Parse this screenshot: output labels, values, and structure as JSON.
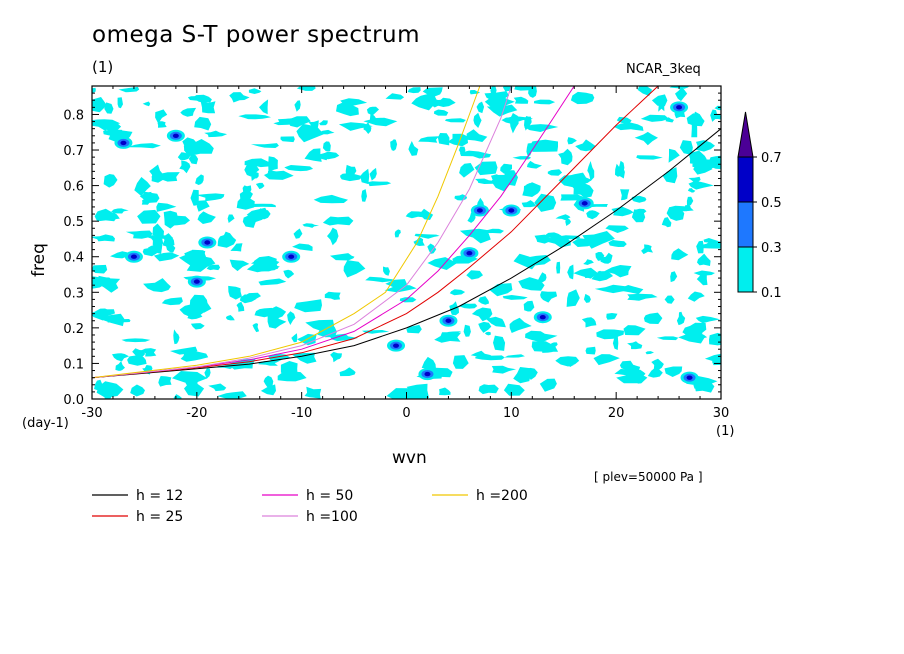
{
  "page": {
    "title": "omega S-T power spectrum",
    "subtitle": "(1)",
    "model_label": "NCAR_3keq",
    "pressure_label": "[ plev=50000 Pa ]"
  },
  "chart_data": {
    "type": "heatmap",
    "title": "omega S-T power spectrum",
    "xlabel": "wvn",
    "ylabel": "freq",
    "x_unit": "(1)",
    "y_unit": "(day-1)",
    "xlim": [
      -30,
      30
    ],
    "ylim": [
      0,
      0.88
    ],
    "xticks": [
      -30,
      -20,
      -10,
      0,
      10,
      20,
      30
    ],
    "yticks": [
      0.0,
      0.1,
      0.2,
      0.3,
      0.4,
      0.5,
      0.6,
      0.7,
      0.8
    ],
    "ytick_labels": [
      "0.0",
      "0.1",
      "0.2",
      "0.3",
      "0.4",
      "0.5",
      "0.6",
      "0.7",
      "0.8"
    ],
    "colorbar": {
      "levels": [
        "0.1",
        "0.3",
        "0.5",
        "0.7"
      ],
      "colors": [
        "#00eeee",
        "#1e78ff",
        "#0000c8",
        "#4b0096"
      ]
    },
    "contour_patches": [
      {
        "x": 2,
        "y": 0.07,
        "level": 2
      },
      {
        "x": 4,
        "y": 0.22,
        "level": 2
      },
      {
        "x": -27,
        "y": 0.72,
        "level": 2
      },
      {
        "x": -22,
        "y": 0.74,
        "level": 2
      },
      {
        "x": 10,
        "y": 0.53,
        "level": 2
      },
      {
        "x": 7,
        "y": 0.53,
        "level": 2
      },
      {
        "x": 26,
        "y": 0.82,
        "level": 2
      },
      {
        "x": -11,
        "y": 0.4,
        "level": 2
      },
      {
        "x": 27,
        "y": 0.06,
        "level": 2
      },
      {
        "x": 17,
        "y": 0.55,
        "level": 2
      },
      {
        "x": 13,
        "y": 0.23,
        "level": 2
      },
      {
        "x": -26,
        "y": 0.4,
        "level": 2
      },
      {
        "x": -19,
        "y": 0.44,
        "level": 2
      },
      {
        "x": -20,
        "y": 0.33,
        "level": 2
      },
      {
        "x": 6,
        "y": 0.41,
        "level": 2
      },
      {
        "x": -1,
        "y": 0.15,
        "level": 2
      }
    ],
    "series": [
      {
        "name": "h = 12",
        "color": "#000000",
        "x": [
          -30,
          -20,
          -15,
          -10,
          -5,
          0,
          5,
          10,
          15,
          20,
          25,
          30
        ],
        "y": [
          0.06,
          0.085,
          0.098,
          0.12,
          0.15,
          0.2,
          0.26,
          0.34,
          0.43,
          0.53,
          0.64,
          0.76
        ]
      },
      {
        "name": "h = 25",
        "color": "#e10000",
        "x": [
          -30,
          -20,
          -15,
          -10,
          -5,
          0,
          3,
          6,
          10,
          15,
          20,
          24
        ],
        "y": [
          0.06,
          0.088,
          0.105,
          0.13,
          0.17,
          0.24,
          0.3,
          0.37,
          0.47,
          0.62,
          0.77,
          0.88
        ]
      },
      {
        "name": "h = 50",
        "color": "#e600c8",
        "x": [
          -30,
          -20,
          -15,
          -10,
          -5,
          0,
          3,
          6,
          9,
          12,
          14,
          16
        ],
        "y": [
          0.06,
          0.09,
          0.11,
          0.14,
          0.19,
          0.28,
          0.36,
          0.46,
          0.57,
          0.7,
          0.79,
          0.88
        ]
      },
      {
        "name": "h =100",
        "color": "#dc82dc",
        "x": [
          -30,
          -20,
          -15,
          -10,
          -5,
          0,
          3,
          6,
          9,
          10
        ],
        "y": [
          0.06,
          0.09,
          0.115,
          0.15,
          0.21,
          0.32,
          0.44,
          0.59,
          0.79,
          0.88
        ]
      },
      {
        "name": "h =200",
        "color": "#f0c800",
        "x": [
          -30,
          -20,
          -15,
          -10,
          -5,
          -2,
          1,
          3,
          5,
          6,
          7
        ],
        "y": [
          0.06,
          0.095,
          0.12,
          0.16,
          0.24,
          0.3,
          0.44,
          0.57,
          0.72,
          0.8,
          0.88
        ]
      }
    ],
    "legend_placement": "bottom",
    "grid": false
  }
}
